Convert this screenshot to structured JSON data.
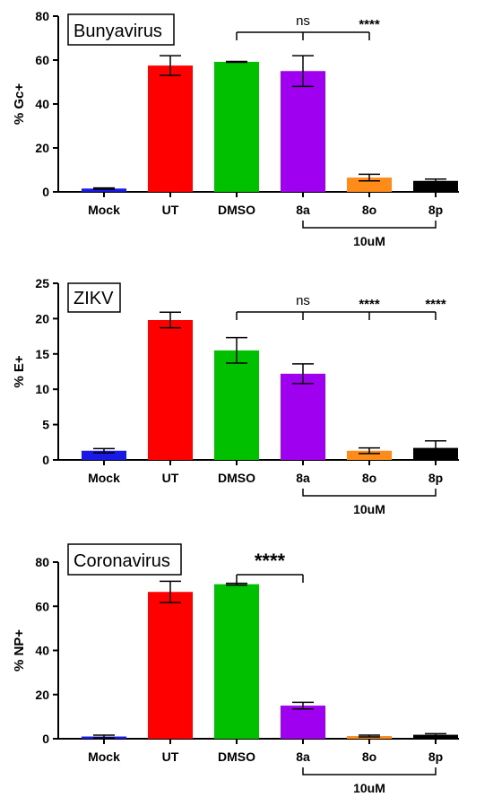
{
  "figure": {
    "group_label": "10uM"
  },
  "chart_data": [
    {
      "type": "bar",
      "title": "Bunyavirus",
      "ylabel": "% Gc+",
      "xlabel": "",
      "ylim": [
        0,
        80
      ],
      "yticks": [
        0,
        20,
        40,
        60,
        80
      ],
      "categories": [
        "Mock",
        "UT",
        "DMSO",
        "8a",
        "8o",
        "8p"
      ],
      "values": [
        1.5,
        57.5,
        59.2,
        55.0,
        6.5,
        5.0
      ],
      "errors": [
        0.3,
        4.5,
        0.2,
        7.0,
        1.5,
        0.8
      ],
      "colors": [
        "#1a1ae6",
        "#ff0000",
        "#00c000",
        "#a000f0",
        "#ff8c1a",
        "#000000"
      ],
      "group_bracket": {
        "from": 3,
        "to": 5,
        "label": "10uM"
      },
      "significance": [
        {
          "label": "ns",
          "target": 3
        },
        {
          "label": "****",
          "target": 4
        }
      ],
      "comparison_line": {
        "from": 2,
        "to": 4
      }
    },
    {
      "type": "bar",
      "title": "ZIKV",
      "ylabel": "% E+",
      "xlabel": "",
      "ylim": [
        0,
        25
      ],
      "yticks": [
        0,
        5,
        10,
        15,
        20,
        25
      ],
      "categories": [
        "Mock",
        "UT",
        "DMSO",
        "8a",
        "8o",
        "8p"
      ],
      "values": [
        1.3,
        19.8,
        15.5,
        12.2,
        1.3,
        1.7
      ],
      "errors": [
        0.3,
        1.1,
        1.8,
        1.4,
        0.4,
        1.0
      ],
      "colors": [
        "#1a1ae6",
        "#ff0000",
        "#00c000",
        "#a000f0",
        "#ff8c1a",
        "#000000"
      ],
      "group_bracket": {
        "from": 3,
        "to": 5,
        "label": "10uM"
      },
      "significance": [
        {
          "label": "ns",
          "target": 3
        },
        {
          "label": "****",
          "target": 4
        },
        {
          "label": "****",
          "target": 5
        }
      ],
      "comparison_line": {
        "from": 2,
        "to": 5
      }
    },
    {
      "type": "bar",
      "title": "Coronavirus",
      "ylabel": "% NP+",
      "xlabel": "",
      "ylim": [
        0,
        80
      ],
      "yticks": [
        0,
        20,
        40,
        60,
        80
      ],
      "categories": [
        "Mock",
        "UT",
        "DMSO",
        "8a",
        "8o",
        "8p"
      ],
      "values": [
        1.0,
        66.5,
        70.0,
        15.0,
        1.2,
        1.8
      ],
      "errors": [
        0.6,
        4.8,
        0.4,
        1.5,
        0.4,
        0.5
      ],
      "colors": [
        "#1a1ae6",
        "#ff0000",
        "#00c000",
        "#a000f0",
        "#ff8c1a",
        "#000000"
      ],
      "group_bracket": {
        "from": 3,
        "to": 5,
        "label": "10uM"
      },
      "significance": [
        {
          "label": "****",
          "target": 3
        }
      ],
      "comparison_line": {
        "from": 2,
        "to": 3
      }
    }
  ]
}
